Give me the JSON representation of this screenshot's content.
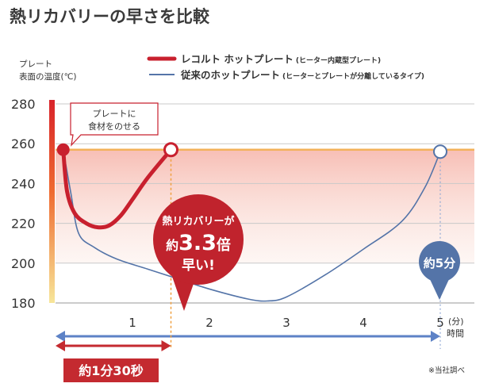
{
  "title": "熱リカバリーの早さを比較",
  "y_axis_label_line1": "プレート",
  "y_axis_label_line2": "表面の温度(℃)",
  "x_axis_unit": "(分)",
  "x_axis_label": "時間",
  "legend": {
    "recolte_name": "レコルト ホットプレート",
    "recolte_note": "(ヒーター内蔵型プレート)",
    "conventional_name": "従来のホットプレート",
    "conventional_note": "(ヒーターとプレートが分離しているタイプ)"
  },
  "callout_line1": "プレートに",
  "callout_line2": "食材をのせる",
  "bubble_red_line1": "熱リカバリーが",
  "bubble_red_prefix": "約",
  "bubble_red_number": "3.3",
  "bubble_red_suffix": "倍",
  "bubble_red_line3": "早い!",
  "bubble_blue": "約5分",
  "duration_label": "約1分30秒",
  "footnote": "※当社調べ",
  "colors": {
    "recolte": "#c8202e",
    "conventional": "#5474a8",
    "dashed_marker": "#f0a040",
    "reference_line": "#f3b15a",
    "duration_box": "#c42a30"
  },
  "chart_data": {
    "type": "line",
    "title": "熱リカバリーの早さを比較",
    "xlabel": "時間",
    "ylabel": "プレート表面の温度(℃)",
    "xlim": [
      0,
      5.1
    ],
    "ylim": [
      180,
      285
    ],
    "x_ticks": [
      1,
      2,
      3,
      4,
      5
    ],
    "y_ticks": [
      180,
      200,
      220,
      240,
      260,
      280
    ],
    "reference_value": 257,
    "series": [
      {
        "name": "レコルト ホットプレート",
        "x": [
          0.1,
          0.15,
          0.25,
          0.4,
          0.55,
          0.7,
          0.85,
          1.0,
          1.2,
          1.5
        ],
        "y": [
          257,
          236,
          225,
          220,
          218,
          219,
          224,
          232,
          243,
          257
        ]
      },
      {
        "name": "従来のホットプレート",
        "x": [
          0.1,
          0.2,
          0.3,
          0.5,
          0.8,
          1.2,
          1.6,
          2.0,
          2.5,
          2.75,
          3.0,
          3.5,
          4.0,
          4.5,
          4.8,
          5.0
        ],
        "y": [
          257,
          235,
          215,
          208,
          202,
          197,
          192,
          187,
          182,
          181,
          183,
          194,
          207,
          221,
          238,
          256
        ]
      }
    ],
    "markers": {
      "recolte_recovery_min": 1.5,
      "conventional_recovery_min": 5.0
    }
  }
}
